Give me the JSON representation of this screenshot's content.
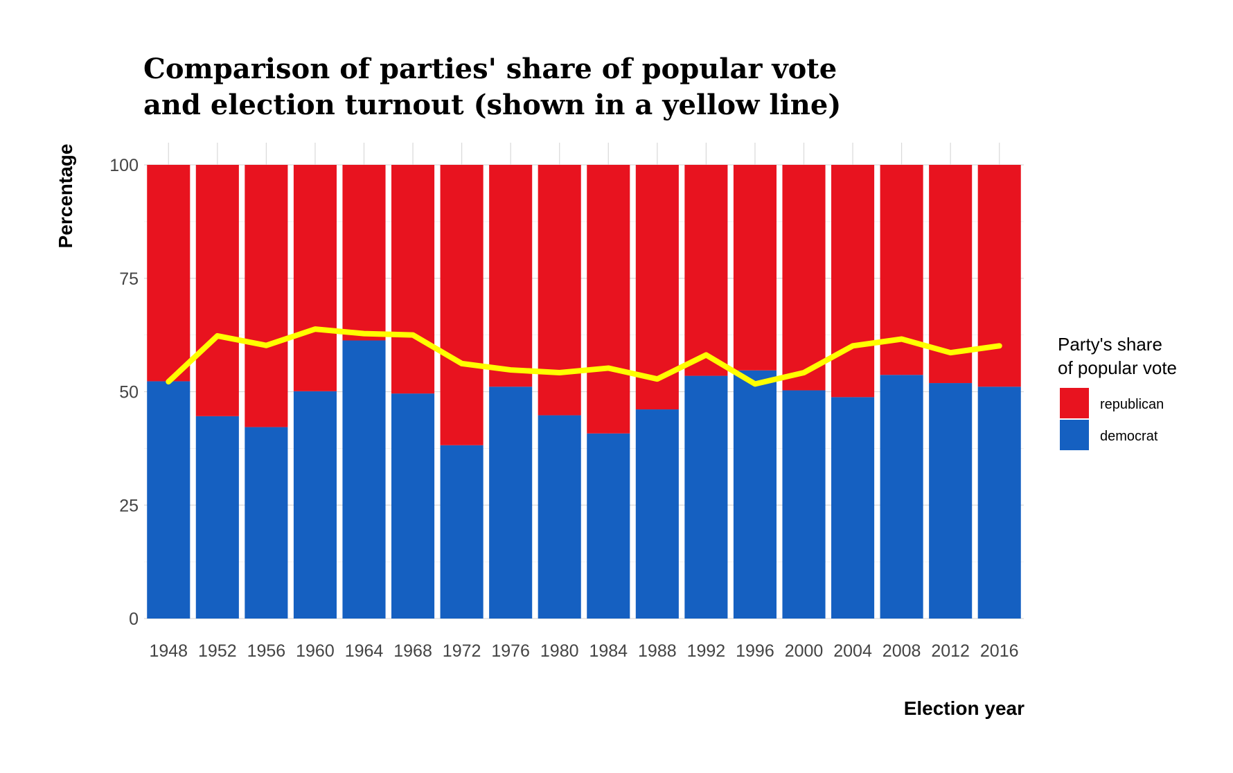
{
  "chart_data": {
    "type": "bar",
    "stacked": true,
    "title_lines": [
      "Comparison of parties' share of popular vote",
      "and election turnout (shown in a yellow line)"
    ],
    "xlabel": "Election year",
    "ylabel": "Percentage",
    "ylim": [
      0,
      100
    ],
    "yticks": [
      0,
      25,
      50,
      75,
      100
    ],
    "grid": true,
    "legend": {
      "title_lines": [
        "Party's share",
        "of popular vote"
      ],
      "position": "right",
      "entries": [
        {
          "label": "republican",
          "color": "#E8131F"
        },
        {
          "label": "democrat",
          "color": "#1560C1"
        }
      ]
    },
    "categories": [
      "1948",
      "1952",
      "1956",
      "1960",
      "1964",
      "1968",
      "1972",
      "1976",
      "1980",
      "1984",
      "1988",
      "1992",
      "1996",
      "2000",
      "2004",
      "2008",
      "2012",
      "2016"
    ],
    "series": [
      {
        "name": "democrat",
        "color": "#1560C1",
        "values": [
          52.3,
          44.6,
          42.2,
          50.1,
          61.3,
          49.6,
          38.2,
          51.1,
          44.8,
          40.8,
          46.1,
          53.5,
          54.7,
          50.3,
          48.8,
          53.7,
          51.9,
          51.1
        ]
      },
      {
        "name": "republican",
        "color": "#E8131F",
        "values": [
          47.7,
          55.4,
          57.8,
          49.9,
          38.7,
          50.4,
          61.8,
          48.9,
          55.2,
          59.2,
          53.9,
          46.5,
          45.3,
          49.7,
          51.2,
          46.3,
          48.1,
          48.9
        ]
      }
    ],
    "line": {
      "name": "turnout",
      "color": "#FFFF00",
      "values": [
        52.2,
        62.3,
        60.2,
        63.8,
        62.8,
        62.5,
        56.2,
        54.8,
        54.2,
        55.2,
        52.8,
        58.1,
        51.7,
        54.2,
        60.1,
        61.6,
        58.6,
        60.1
      ]
    }
  }
}
